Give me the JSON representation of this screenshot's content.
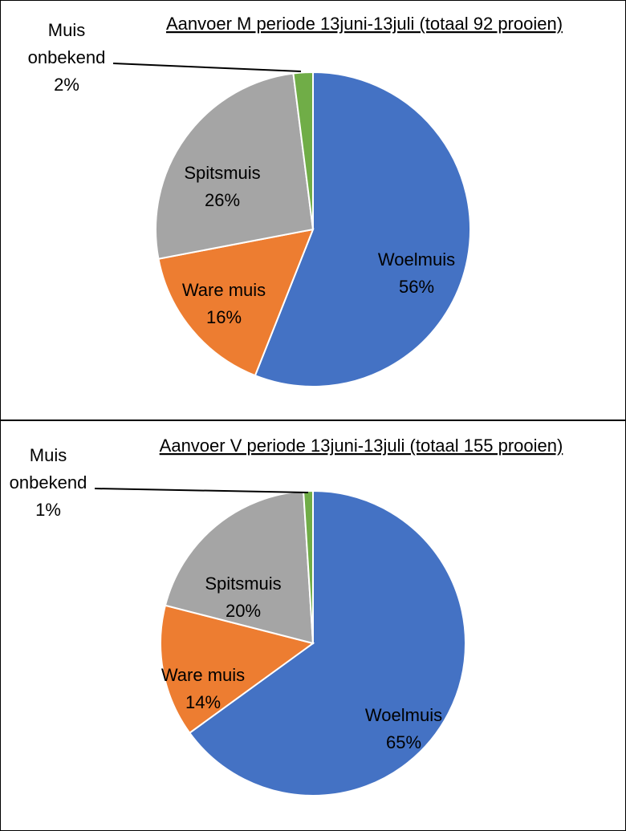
{
  "chart_data": [
    {
      "type": "pie",
      "title": "Aanvoer M periode 13juni-13juli (totaal 92 prooien)",
      "slices": [
        {
          "name": "Woelmuis",
          "value": 56,
          "label": "56%",
          "color": "#4472C4"
        },
        {
          "name": "Ware muis",
          "value": 16,
          "label": "16%",
          "color": "#ED7D31"
        },
        {
          "name": "Spitsmuis",
          "value": 26,
          "label": "26%",
          "color": "#A5A5A5"
        },
        {
          "name_lines": [
            "Muis",
            "onbekend"
          ],
          "name": "Muis onbekend",
          "value": 2,
          "label": "2%",
          "color": "#70AD47"
        }
      ]
    },
    {
      "type": "pie",
      "title": "Aanvoer V periode 13juni-13juli (totaal 155 prooien)",
      "slices": [
        {
          "name": "Woelmuis",
          "value": 65,
          "label": "65%",
          "color": "#4472C4"
        },
        {
          "name": "Ware muis",
          "value": 14,
          "label": "14%",
          "color": "#ED7D31"
        },
        {
          "name": "Spitsmuis",
          "value": 20,
          "label": "20%",
          "color": "#A5A5A5"
        },
        {
          "name_lines": [
            "Muis",
            "onbekend"
          ],
          "name": "Muis onbekend",
          "value": 1,
          "label": "1%",
          "color": "#70AD47"
        }
      ]
    }
  ]
}
